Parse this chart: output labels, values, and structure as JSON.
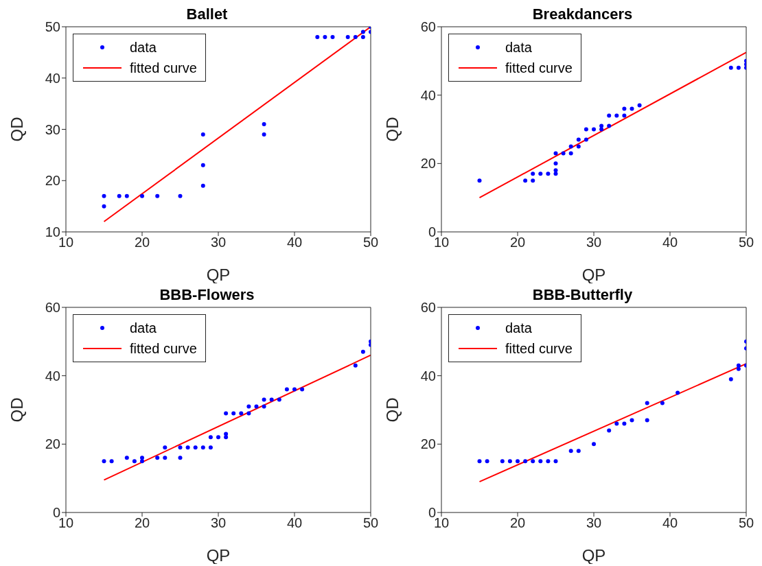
{
  "chart_data": [
    {
      "type": "scatter",
      "title": "Ballet",
      "xlabel": "QP",
      "ylabel": "QD",
      "xlim": [
        10,
        50
      ],
      "ylim": [
        10,
        50
      ],
      "xticks": [
        10,
        20,
        30,
        40,
        50
      ],
      "yticks": [
        10,
        20,
        30,
        40,
        50
      ],
      "legend": "top left",
      "series": [
        {
          "name": "data",
          "color": "#0000ff",
          "marker": "circle",
          "x": [
            15,
            15,
            17,
            18,
            20,
            22,
            25,
            28,
            28,
            28,
            36,
            36,
            43,
            44,
            45,
            47,
            48,
            49,
            49,
            50,
            50
          ],
          "values": [
            17,
            15,
            17,
            17,
            17,
            17,
            17,
            29,
            23,
            19,
            31,
            29,
            48,
            48,
            48,
            48,
            48,
            48,
            49,
            50,
            49
          ]
        },
        {
          "name": "fitted curve",
          "color": "#ff0000",
          "type": "line",
          "marker": "none",
          "x": [
            15,
            50
          ],
          "values": [
            12,
            50
          ]
        }
      ]
    },
    {
      "type": "scatter",
      "title": "Breakdancers",
      "xlabel": "QP",
      "ylabel": "QD",
      "xlim": [
        10,
        50
      ],
      "ylim": [
        0,
        60
      ],
      "xticks": [
        10,
        20,
        30,
        40,
        50
      ],
      "yticks": [
        0,
        20,
        40,
        60
      ],
      "legend": "top left",
      "series": [
        {
          "name": "data",
          "color": "#0000ff",
          "marker": "circle",
          "x": [
            15,
            21,
            22,
            22,
            23,
            24,
            25,
            25,
            25,
            25,
            26,
            27,
            27,
            28,
            28,
            29,
            29,
            30,
            31,
            31,
            32,
            32,
            33,
            34,
            34,
            35,
            36,
            48,
            49,
            50,
            50,
            50
          ],
          "values": [
            15,
            15,
            15,
            17,
            17,
            17,
            17,
            18,
            20,
            23,
            23,
            23,
            25,
            25,
            27,
            27,
            30,
            30,
            30,
            31,
            31,
            34,
            34,
            34,
            36,
            36,
            37,
            48,
            48,
            48,
            49,
            50
          ]
        },
        {
          "name": "fitted curve",
          "color": "#ff0000",
          "type": "line",
          "marker": "none",
          "x": [
            15,
            50
          ],
          "values": [
            10,
            52.5
          ]
        }
      ]
    },
    {
      "type": "scatter",
      "title": "BBB-Flowers",
      "xlabel": "QP",
      "ylabel": "QD",
      "xlim": [
        10,
        50
      ],
      "ylim": [
        0,
        60
      ],
      "xticks": [
        10,
        20,
        30,
        40,
        50
      ],
      "yticks": [
        0,
        20,
        40,
        60
      ],
      "legend": "top left",
      "series": [
        {
          "name": "data",
          "color": "#0000ff",
          "marker": "circle",
          "x": [
            15,
            16,
            18,
            19,
            20,
            20,
            22,
            23,
            23,
            25,
            25,
            26,
            27,
            28,
            29,
            29,
            30,
            31,
            31,
            31,
            32,
            33,
            34,
            34,
            35,
            36,
            36,
            37,
            38,
            39,
            40,
            41,
            48,
            49,
            50,
            50
          ],
          "values": [
            15,
            15,
            16,
            15,
            15,
            16,
            16,
            16,
            19,
            16,
            19,
            19,
            19,
            19,
            19,
            22,
            22,
            22,
            23,
            29,
            29,
            29,
            29,
            31,
            31,
            31,
            33,
            33,
            33,
            36,
            36,
            36,
            43,
            47,
            49,
            50
          ]
        },
        {
          "name": "fitted curve",
          "color": "#ff0000",
          "type": "line",
          "marker": "none",
          "x": [
            15,
            50
          ],
          "values": [
            9.5,
            46
          ]
        }
      ]
    },
    {
      "type": "scatter",
      "title": "BBB-Butterfly",
      "xlabel": "QP",
      "ylabel": "QD",
      "xlim": [
        10,
        50
      ],
      "ylim": [
        0,
        60
      ],
      "xticks": [
        10,
        20,
        30,
        40,
        50
      ],
      "yticks": [
        0,
        20,
        40,
        60
      ],
      "legend": "top left",
      "series": [
        {
          "name": "data",
          "color": "#0000ff",
          "marker": "circle",
          "x": [
            15,
            16,
            18,
            19,
            20,
            21,
            22,
            23,
            24,
            25,
            27,
            28,
            30,
            32,
            33,
            34,
            35,
            37,
            37,
            39,
            41,
            48,
            49,
            49,
            50,
            50,
            50
          ],
          "values": [
            15,
            15,
            15,
            15,
            15,
            15,
            15,
            15,
            15,
            15,
            18,
            18,
            20,
            24,
            26,
            26,
            27,
            27,
            32,
            32,
            35,
            39,
            42,
            43,
            43,
            48,
            50
          ]
        },
        {
          "name": "fitted curve",
          "color": "#ff0000",
          "type": "line",
          "marker": "none",
          "x": [
            15,
            50
          ],
          "values": [
            9,
            43.5
          ]
        }
      ]
    }
  ]
}
